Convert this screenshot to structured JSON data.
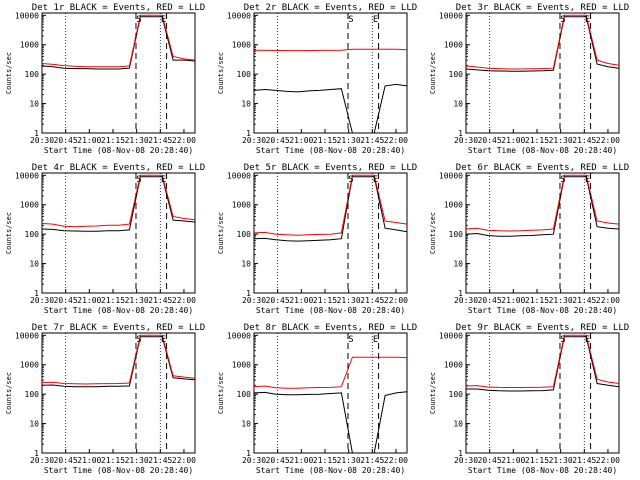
{
  "chart_data": [
    {
      "type": "line",
      "title": "Det 1r BLACK = Events, RED = LLD",
      "ylabel": "Counts/sec",
      "xlabel": "Start Time (08-Nov-08 20:28:40)",
      "xticks": [
        "20:30",
        "20:45",
        "21:00",
        "21:15",
        "21:30",
        "21:45",
        "22:00"
      ],
      "yticks": [
        "1",
        "10",
        "100",
        "1000",
        "10000"
      ],
      "scale": "log",
      "ylim": [
        1,
        12000
      ],
      "xlim": [
        "20:30",
        "22:07"
      ],
      "annotations": [
        "S",
        "E"
      ],
      "series": [
        {
          "color": "#000000",
          "values": [
            190,
            180,
            160,
            155,
            155,
            150,
            150,
            150,
            160,
            9000,
            9000,
            9000,
            300,
            300,
            280
          ]
        },
        {
          "color": "#ff0000",
          "values": [
            230,
            215,
            195,
            185,
            180,
            178,
            178,
            180,
            190,
            10000,
            10000,
            10000,
            400,
            330,
            300
          ]
        }
      ]
    },
    {
      "type": "line",
      "title": "Det 2r BLACK = Events, RED = LLD",
      "ylabel": "Counts/sec",
      "xlabel": "Start Time (08-Nov-08 20:28:40)",
      "xticks": [
        "20:30",
        "20:45",
        "21:00",
        "21:15",
        "21:30",
        "21:45",
        "22:00"
      ],
      "yticks": [
        "1",
        "10",
        "100",
        "1000",
        "10000"
      ],
      "scale": "log",
      "ylim": [
        1,
        12000
      ],
      "xlim": [
        "20:30",
        "22:07"
      ],
      "annotations": [
        "S",
        "E"
      ],
      "series": [
        {
          "color": "#000000",
          "values": [
            28,
            30,
            28,
            26,
            25,
            27,
            28,
            30,
            32,
            0,
            0,
            0,
            40,
            45,
            40
          ]
        },
        {
          "color": "#ff0000",
          "values": [
            650,
            640,
            640,
            630,
            630,
            630,
            640,
            640,
            650,
            700,
            700,
            700,
            700,
            700,
            680
          ]
        }
      ]
    },
    {
      "type": "line",
      "title": "Det 3r BLACK = Events, RED = LLD",
      "ylabel": "Counts/sec",
      "xlabel": "Start Time (08-Nov-08 20:28:40)",
      "xticks": [
        "20:30",
        "20:45",
        "21:00",
        "21:15",
        "21:30",
        "21:45",
        "22:00"
      ],
      "yticks": [
        "1",
        "10",
        "100",
        "1000",
        "10000"
      ],
      "scale": "log",
      "ylim": [
        1,
        12000
      ],
      "xlim": [
        "20:30",
        "22:07"
      ],
      "annotations": [
        "S",
        "E"
      ],
      "series": [
        {
          "color": "#000000",
          "values": [
            150,
            140,
            130,
            128,
            126,
            125,
            128,
            130,
            135,
            9000,
            9000,
            9000,
            220,
            180,
            160
          ]
        },
        {
          "color": "#ff0000",
          "values": [
            190,
            175,
            160,
            155,
            150,
            150,
            152,
            155,
            160,
            10000,
            10000,
            10000,
            300,
            230,
            200
          ]
        }
      ]
    },
    {
      "type": "line",
      "title": "Det 4r BLACK = Events, RED = LLD",
      "ylabel": "Counts/sec",
      "xlabel": "Start Time (08-Nov-08 20:28:40)",
      "xticks": [
        "20:30",
        "20:45",
        "21:00",
        "21:15",
        "21:30",
        "21:45",
        "22:00"
      ],
      "yticks": [
        "1",
        "10",
        "100",
        "1000",
        "10000"
      ],
      "scale": "log",
      "ylim": [
        1,
        12000
      ],
      "xlim": [
        "20:30",
        "22:07"
      ],
      "annotations": [
        "S",
        "E"
      ],
      "series": [
        {
          "color": "#000000",
          "values": [
            150,
            145,
            130,
            128,
            125,
            125,
            130,
            130,
            140,
            9000,
            9000,
            9000,
            300,
            280,
            260
          ]
        },
        {
          "color": "#ff0000",
          "values": [
            230,
            220,
            185,
            180,
            185,
            190,
            200,
            200,
            220,
            10000,
            10000,
            10000,
            400,
            340,
            310
          ]
        }
      ]
    },
    {
      "type": "line",
      "title": "Det 5r BLACK = Events, RED = LLD",
      "ylabel": "Counts/sec",
      "xlabel": "Start Time (08-Nov-08 20:28:40)",
      "xticks": [
        "20:30",
        "20:45",
        "21:00",
        "21:15",
        "21:30",
        "21:45",
        "22:00"
      ],
      "yticks": [
        "1",
        "10",
        "100",
        "1000",
        "10000"
      ],
      "scale": "log",
      "ylim": [
        1,
        12000
      ],
      "xlim": [
        "20:30",
        "22:07"
      ],
      "annotations": [
        "S",
        "E"
      ],
      "series": [
        {
          "color": "#000000",
          "values": [
            70,
            72,
            65,
            60,
            58,
            60,
            62,
            65,
            70,
            9000,
            9000,
            9000,
            160,
            140,
            120
          ]
        },
        {
          "color": "#ff0000",
          "values": [
            110,
            115,
            100,
            95,
            92,
            95,
            98,
            100,
            110,
            10000,
            10000,
            10000,
            280,
            250,
            220
          ]
        }
      ]
    },
    {
      "type": "line",
      "title": "Det 6r BLACK = Events, RED = LLD",
      "ylabel": "Counts/sec",
      "xlabel": "Start Time (08-Nov-08 20:28:40)",
      "xticks": [
        "20:30",
        "20:45",
        "21:00",
        "21:15",
        "21:30",
        "21:45",
        "22:00"
      ],
      "yticks": [
        "1",
        "10",
        "100",
        "1000",
        "10000"
      ],
      "scale": "log",
      "ylim": [
        1,
        12000
      ],
      "xlim": [
        "20:30",
        "22:07"
      ],
      "annotations": [
        "S",
        "E"
      ],
      "series": [
        {
          "color": "#000000",
          "values": [
            100,
            105,
            90,
            85,
            85,
            88,
            90,
            95,
            100,
            9000,
            9000,
            9000,
            180,
            160,
            150
          ]
        },
        {
          "color": "#ff0000",
          "values": [
            150,
            160,
            135,
            130,
            128,
            130,
            135,
            140,
            150,
            10000,
            10000,
            10000,
            280,
            240,
            220
          ]
        }
      ]
    },
    {
      "type": "line",
      "title": "Det 7r BLACK = Events, RED = LLD",
      "ylabel": "Counts/sec",
      "xlabel": "Start Time (08-Nov-08 20:28:40)",
      "xticks": [
        "20:30",
        "20:45",
        "21:00",
        "21:15",
        "21:30",
        "21:45",
        "22:00"
      ],
      "yticks": [
        "1",
        "10",
        "100",
        "1000",
        "10000"
      ],
      "scale": "log",
      "ylim": [
        1,
        12000
      ],
      "xlim": [
        "20:30",
        "22:07"
      ],
      "annotations": [
        "S",
        "E"
      ],
      "series": [
        {
          "color": "#000000",
          "values": [
            200,
            205,
            185,
            180,
            178,
            180,
            185,
            185,
            190,
            9000,
            9000,
            9000,
            360,
            330,
            310
          ]
        },
        {
          "color": "#ff0000",
          "values": [
            250,
            255,
            230,
            225,
            222,
            225,
            228,
            230,
            240,
            10000,
            10000,
            10000,
            420,
            380,
            350
          ]
        }
      ]
    },
    {
      "type": "line",
      "title": "Det 8r BLACK = Events, RED = LLD",
      "ylabel": "Counts/sec",
      "xlabel": "Start Time (08-Nov-08 20:28:40)",
      "xticks": [
        "20:30",
        "20:45",
        "21:00",
        "21:15",
        "21:30",
        "21:45",
        "22:00"
      ],
      "yticks": [
        "1",
        "10",
        "100",
        "1000",
        "10000"
      ],
      "scale": "log",
      "ylim": [
        1,
        12000
      ],
      "xlim": [
        "20:30",
        "22:07"
      ],
      "annotations": [
        "S",
        "E"
      ],
      "series": [
        {
          "color": "#000000",
          "values": [
            110,
            115,
            100,
            95,
            95,
            98,
            100,
            105,
            110,
            0,
            0,
            0,
            90,
            110,
            120
          ]
        },
        {
          "color": "#ff0000",
          "values": [
            180,
            190,
            165,
            160,
            160,
            165,
            168,
            170,
            180,
            1800,
            1800,
            1800,
            1800,
            1800,
            1750
          ]
        }
      ]
    },
    {
      "type": "line",
      "title": "Det 9r BLACK = Events, RED = LLD",
      "ylabel": "Counts/sec",
      "xlabel": "Start Time (08-Nov-08 20:28:40)",
      "xticks": [
        "20:30",
        "20:45",
        "21:00",
        "21:15",
        "21:30",
        "21:45",
        "22:00"
      ],
      "yticks": [
        "1",
        "10",
        "100",
        "1000",
        "10000"
      ],
      "scale": "log",
      "ylim": [
        1,
        12000
      ],
      "xlim": [
        "20:30",
        "22:07"
      ],
      "annotations": [
        "S",
        "E"
      ],
      "series": [
        {
          "color": "#000000",
          "values": [
            150,
            150,
            135,
            130,
            128,
            128,
            130,
            132,
            140,
            9000,
            9000,
            9000,
            230,
            200,
            180
          ]
        },
        {
          "color": "#ff0000",
          "values": [
            190,
            195,
            175,
            170,
            168,
            168,
            170,
            172,
            180,
            10000,
            10000,
            10000,
            320,
            260,
            230
          ]
        }
      ]
    }
  ]
}
